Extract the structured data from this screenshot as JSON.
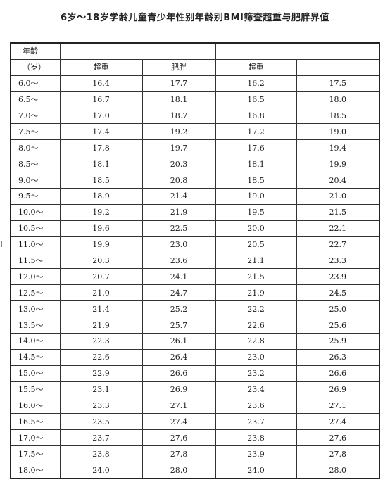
{
  "title": "6岁～18岁学龄儿童青少年性别年龄别BMI筛查超重与肥胖界值",
  "header": {
    "row1": {
      "age_label": "年龄",
      "g1": "",
      "g2": ""
    },
    "row2": {
      "age_unit": "（岁）",
      "c1": "超重",
      "c2": "肥胖",
      "c3": "超重",
      "c4": ""
    }
  },
  "rows": [
    {
      "age": "6.0～",
      "v1": "16.4",
      "v2": "17.7",
      "v3": "16.2",
      "v4": "17.5"
    },
    {
      "age": "6.5～",
      "v1": "16.7",
      "v2": "18.1",
      "v3": "16.5",
      "v4": "18.0"
    },
    {
      "age": "7.0～",
      "v1": "17.0",
      "v2": "18.7",
      "v3": "16.8",
      "v4": "18.5"
    },
    {
      "age": "7.5～",
      "v1": "17.4",
      "v2": "19.2",
      "v3": "17.2",
      "v4": "19.0"
    },
    {
      "age": "8.0～",
      "v1": "17.8",
      "v2": "19.7",
      "v3": "17.6",
      "v4": "19.4"
    },
    {
      "age": "8.5～",
      "v1": "18.1",
      "v2": "20.3",
      "v3": "18.1",
      "v4": "19.9"
    },
    {
      "age": "9.0～",
      "v1": "18.5",
      "v2": "20.8",
      "v3": "18.5",
      "v4": "20.4"
    },
    {
      "age": "9.5～",
      "v1": "18.9",
      "v2": "21.4",
      "v3": "19.0",
      "v4": "21.0"
    },
    {
      "age": "10.0～",
      "v1": "19.2",
      "v2": "21.9",
      "v3": "19.5",
      "v4": "21.5"
    },
    {
      "age": "10.5～",
      "v1": "19.6",
      "v2": "22.5",
      "v3": "20.0",
      "v4": "22.1"
    },
    {
      "age": "11.0～",
      "v1": "19.9",
      "v2": "23.0",
      "v3": "20.5",
      "v4": "22.7"
    },
    {
      "age": "11.5～",
      "v1": "20.3",
      "v2": "23.6",
      "v3": "21.1",
      "v4": "23.3"
    },
    {
      "age": "12.0～",
      "v1": "20.7",
      "v2": "24.1",
      "v3": "21.5",
      "v4": "23.9"
    },
    {
      "age": "12.5～",
      "v1": "21.0",
      "v2": "24.7",
      "v3": "21.9",
      "v4": "24.5"
    },
    {
      "age": "13.0～",
      "v1": "21.4",
      "v2": "25.2",
      "v3": "22.2",
      "v4": "25.0"
    },
    {
      "age": "13.5～",
      "v1": "21.9",
      "v2": "25.7",
      "v3": "22.6",
      "v4": "25.6"
    },
    {
      "age": "14.0～",
      "v1": "22.3",
      "v2": "26.1",
      "v3": "22.8",
      "v4": "25.9"
    },
    {
      "age": "14.5～",
      "v1": "22.6",
      "v2": "26.4",
      "v3": "23.0",
      "v4": "26.3"
    },
    {
      "age": "15.0～",
      "v1": "22.9",
      "v2": "26.6",
      "v3": "23.2",
      "v4": "26.6"
    },
    {
      "age": "15.5～",
      "v1": "23.1",
      "v2": "26.9",
      "v3": "23.4",
      "v4": "26.9"
    },
    {
      "age": "16.0～",
      "v1": "23.3",
      "v2": "27.1",
      "v3": "23.6",
      "v4": "27.1"
    },
    {
      "age": "16.5～",
      "v1": "23.5",
      "v2": "27.4",
      "v3": "23.7",
      "v4": "27.4"
    },
    {
      "age": "17.0～",
      "v1": "23.7",
      "v2": "27.6",
      "v3": "23.8",
      "v4": "27.6"
    },
    {
      "age": "17.5～",
      "v1": "23.8",
      "v2": "27.8",
      "v3": "23.9",
      "v4": "27.8"
    },
    {
      "age": "18.0～",
      "v1": "24.0",
      "v2": "28.0",
      "v3": "24.0",
      "v4": "28.0"
    }
  ]
}
